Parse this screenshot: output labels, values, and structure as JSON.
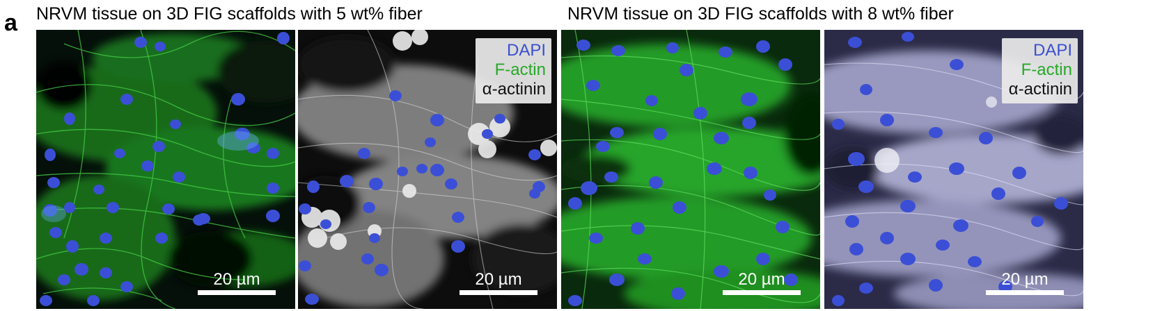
{
  "figure": {
    "panel_letter": "a",
    "group_left_title": "NRVM tissue on 3D FIG scaffolds with 5 wt% fiber",
    "group_right_title": "NRVM tissue on 3D FIG scaffolds with 8 wt% fiber",
    "colors": {
      "dapi": "#3b4fd6",
      "factin": "#2fb52f",
      "actinin": "#ffffff",
      "legend_factin_text": "#27a827",
      "legend_dapi_text": "#3a4fd0"
    },
    "legend": {
      "dapi": "DAPI",
      "factin": "F-actin",
      "actinin": "α-actinin"
    },
    "scale_bar_label": "20 µm",
    "images": [
      {
        "name": "5wt-factin-dapi",
        "stain": "green"
      },
      {
        "name": "5wt-merged-actinin",
        "stain": "gray"
      },
      {
        "name": "8wt-factin-dapi",
        "stain": "green"
      },
      {
        "name": "8wt-merged-actinin",
        "stain": "lavender"
      }
    ]
  }
}
